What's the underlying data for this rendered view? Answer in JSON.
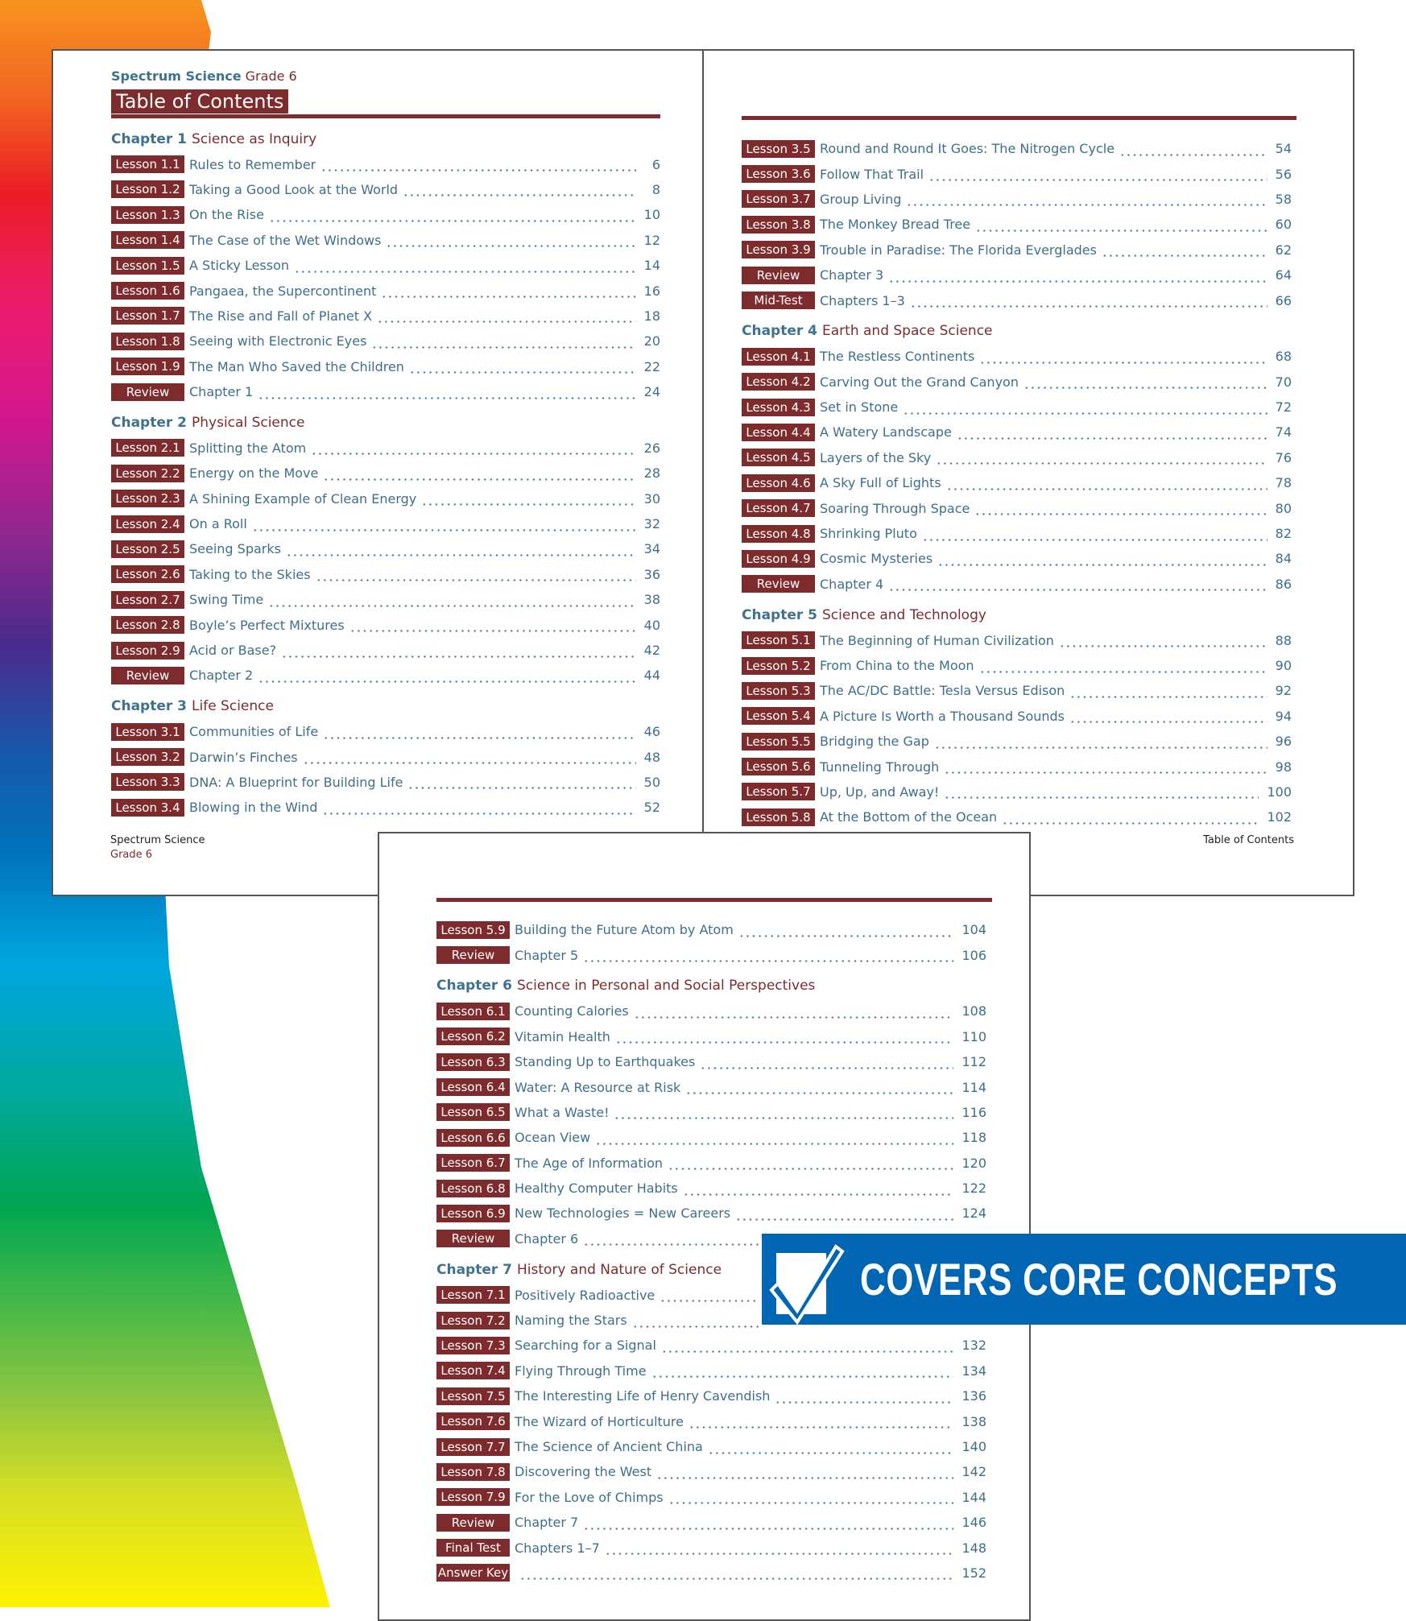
{
  "header": {
    "brand": "Spectrum Science",
    "grade": "Grade 6",
    "title": "Table of Contents"
  },
  "footer": {
    "left_brand": "Spectrum Science",
    "left_grade": "Grade 6",
    "right": "Table of Contents"
  },
  "banner": {
    "text": "COVERS CORE CONCEPTS",
    "icon": "checkbox-check-icon",
    "color": "#0066b3"
  },
  "colors": {
    "maroon": "#7e2b2d",
    "blue": "#3f7290"
  },
  "pages": [
    {
      "entries": [
        {
          "chapter": "Chapter 1",
          "name": "Science as Inquiry"
        },
        {
          "label": "Lesson 1.1",
          "title": "Rules to Remember",
          "page": "6"
        },
        {
          "label": "Lesson 1.2",
          "title": "Taking a Good Look at the World",
          "page": "8"
        },
        {
          "label": "Lesson 1.3",
          "title": "On the Rise",
          "page": "10"
        },
        {
          "label": "Lesson 1.4",
          "title": "The Case of the Wet Windows",
          "page": "12"
        },
        {
          "label": "Lesson 1.5",
          "title": "A Sticky Lesson",
          "page": "14"
        },
        {
          "label": "Lesson 1.6",
          "title": "Pangaea, the Supercontinent",
          "page": "16"
        },
        {
          "label": "Lesson 1.7",
          "title": "The Rise and Fall of Planet X",
          "page": "18"
        },
        {
          "label": "Lesson 1.8",
          "title": "Seeing with Electronic Eyes",
          "page": "20"
        },
        {
          "label": "Lesson 1.9",
          "title": "The Man Who Saved the Children",
          "page": "22"
        },
        {
          "label": "Review",
          "title": "Chapter 1",
          "page": "24"
        },
        {
          "chapter": "Chapter 2",
          "name": "Physical Science"
        },
        {
          "label": "Lesson 2.1",
          "title": "Splitting the Atom",
          "page": "26"
        },
        {
          "label": "Lesson 2.2",
          "title": "Energy on the Move",
          "page": "28"
        },
        {
          "label": "Lesson 2.3",
          "title": "A Shining Example of Clean Energy",
          "page": "30"
        },
        {
          "label": "Lesson 2.4",
          "title": "On a Roll",
          "page": "32"
        },
        {
          "label": "Lesson 2.5",
          "title": "Seeing Sparks",
          "page": "34"
        },
        {
          "label": "Lesson 2.6",
          "title": "Taking to the Skies",
          "page": "36"
        },
        {
          "label": "Lesson 2.7",
          "title": "Swing Time",
          "page": "38"
        },
        {
          "label": "Lesson 2.8",
          "title": "Boyle’s Perfect Mixtures",
          "page": "40"
        },
        {
          "label": "Lesson 2.9",
          "title": "Acid or Base?",
          "page": "42"
        },
        {
          "label": "Review",
          "title": "Chapter 2",
          "page": "44"
        },
        {
          "chapter": "Chapter 3",
          "name": "Life Science"
        },
        {
          "label": "Lesson 3.1",
          "title": "Communities of Life",
          "page": "46"
        },
        {
          "label": "Lesson 3.2",
          "title": "Darwin’s Finches",
          "page": "48"
        },
        {
          "label": "Lesson 3.3",
          "title": "DNA: A Blueprint for Building Life",
          "page": "50"
        },
        {
          "label": "Lesson 3.4",
          "title": "Blowing in the Wind",
          "page": "52"
        }
      ]
    },
    {
      "entries": [
        {
          "label": "Lesson 3.5",
          "title": "Round and Round It Goes: The Nitrogen Cycle",
          "page": "54"
        },
        {
          "label": "Lesson 3.6",
          "title": "Follow That Trail",
          "page": "56"
        },
        {
          "label": "Lesson 3.7",
          "title": "Group Living",
          "page": "58"
        },
        {
          "label": "Lesson 3.8",
          "title": "The Monkey Bread Tree",
          "page": "60"
        },
        {
          "label": "Lesson 3.9",
          "title": "Trouble in Paradise: The Florida Everglades",
          "page": "62"
        },
        {
          "label": "Review",
          "title": "Chapter 3",
          "page": "64"
        },
        {
          "label": "Mid-Test",
          "title": "Chapters 1–3",
          "page": "66"
        },
        {
          "chapter": "Chapter 4",
          "name": "Earth and Space Science"
        },
        {
          "label": "Lesson 4.1",
          "title": "The Restless Continents",
          "page": "68"
        },
        {
          "label": "Lesson 4.2",
          "title": "Carving Out the Grand Canyon",
          "page": "70"
        },
        {
          "label": "Lesson 4.3",
          "title": "Set in Stone",
          "page": "72"
        },
        {
          "label": "Lesson 4.4",
          "title": "A Watery Landscape",
          "page": "74"
        },
        {
          "label": "Lesson 4.5",
          "title": "Layers of the Sky",
          "page": "76"
        },
        {
          "label": "Lesson 4.6",
          "title": "A Sky Full of Lights",
          "page": "78"
        },
        {
          "label": "Lesson 4.7",
          "title": "Soaring Through Space",
          "page": "80"
        },
        {
          "label": "Lesson 4.8",
          "title": "Shrinking Pluto",
          "page": "82"
        },
        {
          "label": "Lesson 4.9",
          "title": "Cosmic Mysteries",
          "page": "84"
        },
        {
          "label": "Review",
          "title": "Chapter 4",
          "page": "86"
        },
        {
          "chapter": "Chapter 5",
          "name": "Science and Technology"
        },
        {
          "label": "Lesson 5.1",
          "title": "The Beginning of Human Civilization",
          "page": "88"
        },
        {
          "label": "Lesson 5.2",
          "title": "From China to the Moon",
          "page": "90"
        },
        {
          "label": "Lesson 5.3",
          "title": "The AC/DC Battle: Tesla Versus Edison",
          "page": "92"
        },
        {
          "label": "Lesson 5.4",
          "title": "A Picture Is Worth a Thousand Sounds",
          "page": "94"
        },
        {
          "label": "Lesson 5.5",
          "title": "Bridging the Gap",
          "page": "96"
        },
        {
          "label": "Lesson 5.6",
          "title": "Tunneling Through",
          "page": "98"
        },
        {
          "label": "Lesson 5.7",
          "title": "Up, Up, and Away!",
          "page": "100"
        },
        {
          "label": "Lesson 5.8",
          "title": "At the Bottom of the Ocean",
          "page": "102"
        }
      ]
    },
    {
      "entries": [
        {
          "label": "Lesson 5.9",
          "title": "Building the Future Atom by Atom",
          "page": "104"
        },
        {
          "label": "Review",
          "title": "Chapter 5",
          "page": "106"
        },
        {
          "chapter": "Chapter 6",
          "name": "Science in Personal and Social Perspectives"
        },
        {
          "label": "Lesson 6.1",
          "title": "Counting Calories",
          "page": "108"
        },
        {
          "label": "Lesson 6.2",
          "title": "Vitamin Health",
          "page": "110"
        },
        {
          "label": "Lesson 6.3",
          "title": "Standing Up to Earthquakes",
          "page": "112"
        },
        {
          "label": "Lesson 6.4",
          "title": "Water: A Resource at Risk",
          "page": "114"
        },
        {
          "label": "Lesson 6.5",
          "title": "What a Waste!",
          "page": "116"
        },
        {
          "label": "Lesson 6.6",
          "title": "Ocean View",
          "page": "118"
        },
        {
          "label": "Lesson 6.7",
          "title": "The Age of Information",
          "page": "120"
        },
        {
          "label": "Lesson 6.8",
          "title": "Healthy Computer Habits",
          "page": "122"
        },
        {
          "label": "Lesson 6.9",
          "title": "New Technologies = New Careers",
          "page": "124"
        },
        {
          "label": "Review",
          "title": "Chapter 6",
          "page": ""
        },
        {
          "chapter": "Chapter 7",
          "name": "History and Nature of Science"
        },
        {
          "label": "Lesson 7.1",
          "title": "Positively Radioactive",
          "page": ""
        },
        {
          "label": "Lesson 7.2",
          "title": "Naming the Stars",
          "page": ""
        },
        {
          "label": "Lesson 7.3",
          "title": "Searching for a Signal",
          "page": "132"
        },
        {
          "label": "Lesson 7.4",
          "title": "Flying Through Time",
          "page": "134"
        },
        {
          "label": "Lesson 7.5",
          "title": "The Interesting Life of Henry Cavendish",
          "page": "136"
        },
        {
          "label": "Lesson 7.6",
          "title": "The Wizard of Horticulture",
          "page": "138"
        },
        {
          "label": "Lesson 7.7",
          "title": "The Science of Ancient China",
          "page": "140"
        },
        {
          "label": "Lesson 7.8",
          "title": "Discovering the West",
          "page": "142"
        },
        {
          "label": "Lesson 7.9",
          "title": "For the Love of Chimps",
          "page": "144"
        },
        {
          "label": "Review",
          "title": "Chapter 7",
          "page": "146"
        },
        {
          "label": "Final Test",
          "title": "Chapters 1–7",
          "page": "148"
        },
        {
          "label": "Answer Key",
          "title": "",
          "page": "152"
        }
      ]
    }
  ]
}
